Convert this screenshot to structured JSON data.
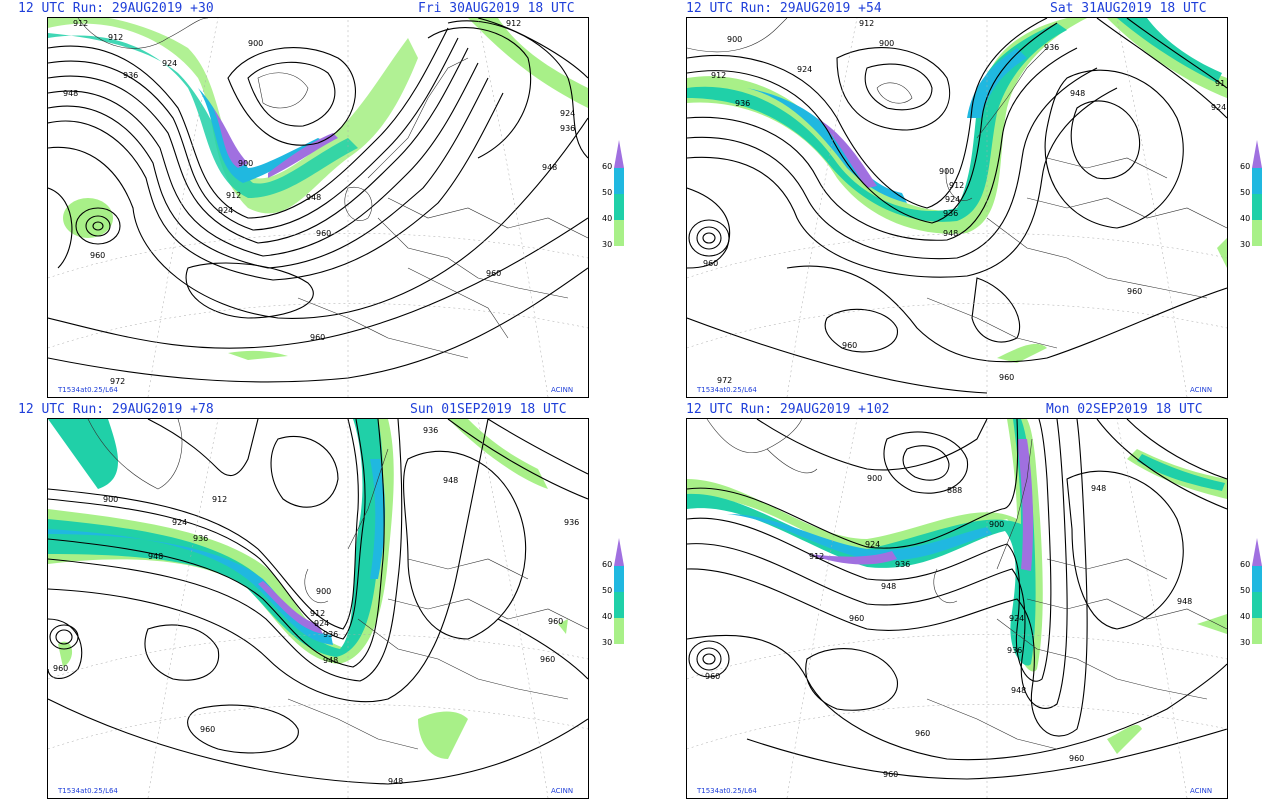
{
  "panels": [
    {
      "run": "12 UTC Run: 29AUG2019 +30",
      "valid": "Fri 30AUG2019 18 UTC",
      "model": "T1534at0.25/L64",
      "credit": "ACINN",
      "contours": [
        "912",
        "900",
        "936",
        "948",
        "924",
        "912",
        "900",
        "912",
        "924",
        "948",
        "960",
        "960",
        "960",
        "972",
        "948",
        "960",
        "936",
        "924",
        "912"
      ]
    },
    {
      "run": "12 UTC Run: 29AUG2019 +54",
      "valid": "Sat 31AUG2019 18 UTC",
      "model": "T1534at0.25/L64",
      "credit": "ACINN",
      "contours": [
        "912",
        "900",
        "900",
        "924",
        "912",
        "936",
        "936",
        "948",
        "924",
        "91",
        "960",
        "960",
        "960",
        "960",
        "972",
        "900",
        "912",
        "924",
        "936",
        "948"
      ]
    },
    {
      "run": "12 UTC Run: 29AUG2019 +78",
      "valid": "Sun 01SEP2019 18 UTC",
      "model": "T1534at0.25/L64",
      "credit": "ACINN",
      "contours": [
        "912",
        "900",
        "924",
        "936",
        "948",
        "936",
        "948",
        "960",
        "948",
        "960",
        "960",
        "960",
        "900",
        "912",
        "924",
        "936",
        "948",
        "936"
      ]
    },
    {
      "run": "12 UTC Run: 29AUG2019 +102",
      "valid": "Mon 02SEP2019 18 UTC",
      "model": "T1534at0.25/L64",
      "credit": "ACINN",
      "contours": [
        "900",
        "888",
        "912",
        "924",
        "936",
        "948",
        "960",
        "900",
        "924",
        "936",
        "948",
        "960",
        "960",
        "960",
        "948",
        "960",
        "948"
      ]
    }
  ],
  "legend": {
    "ticks": [
      "60",
      "50",
      "40",
      "30"
    ],
    "colors": [
      "#a070e0",
      "#20b8e0",
      "#20d0a8",
      "#a8f088"
    ]
  }
}
